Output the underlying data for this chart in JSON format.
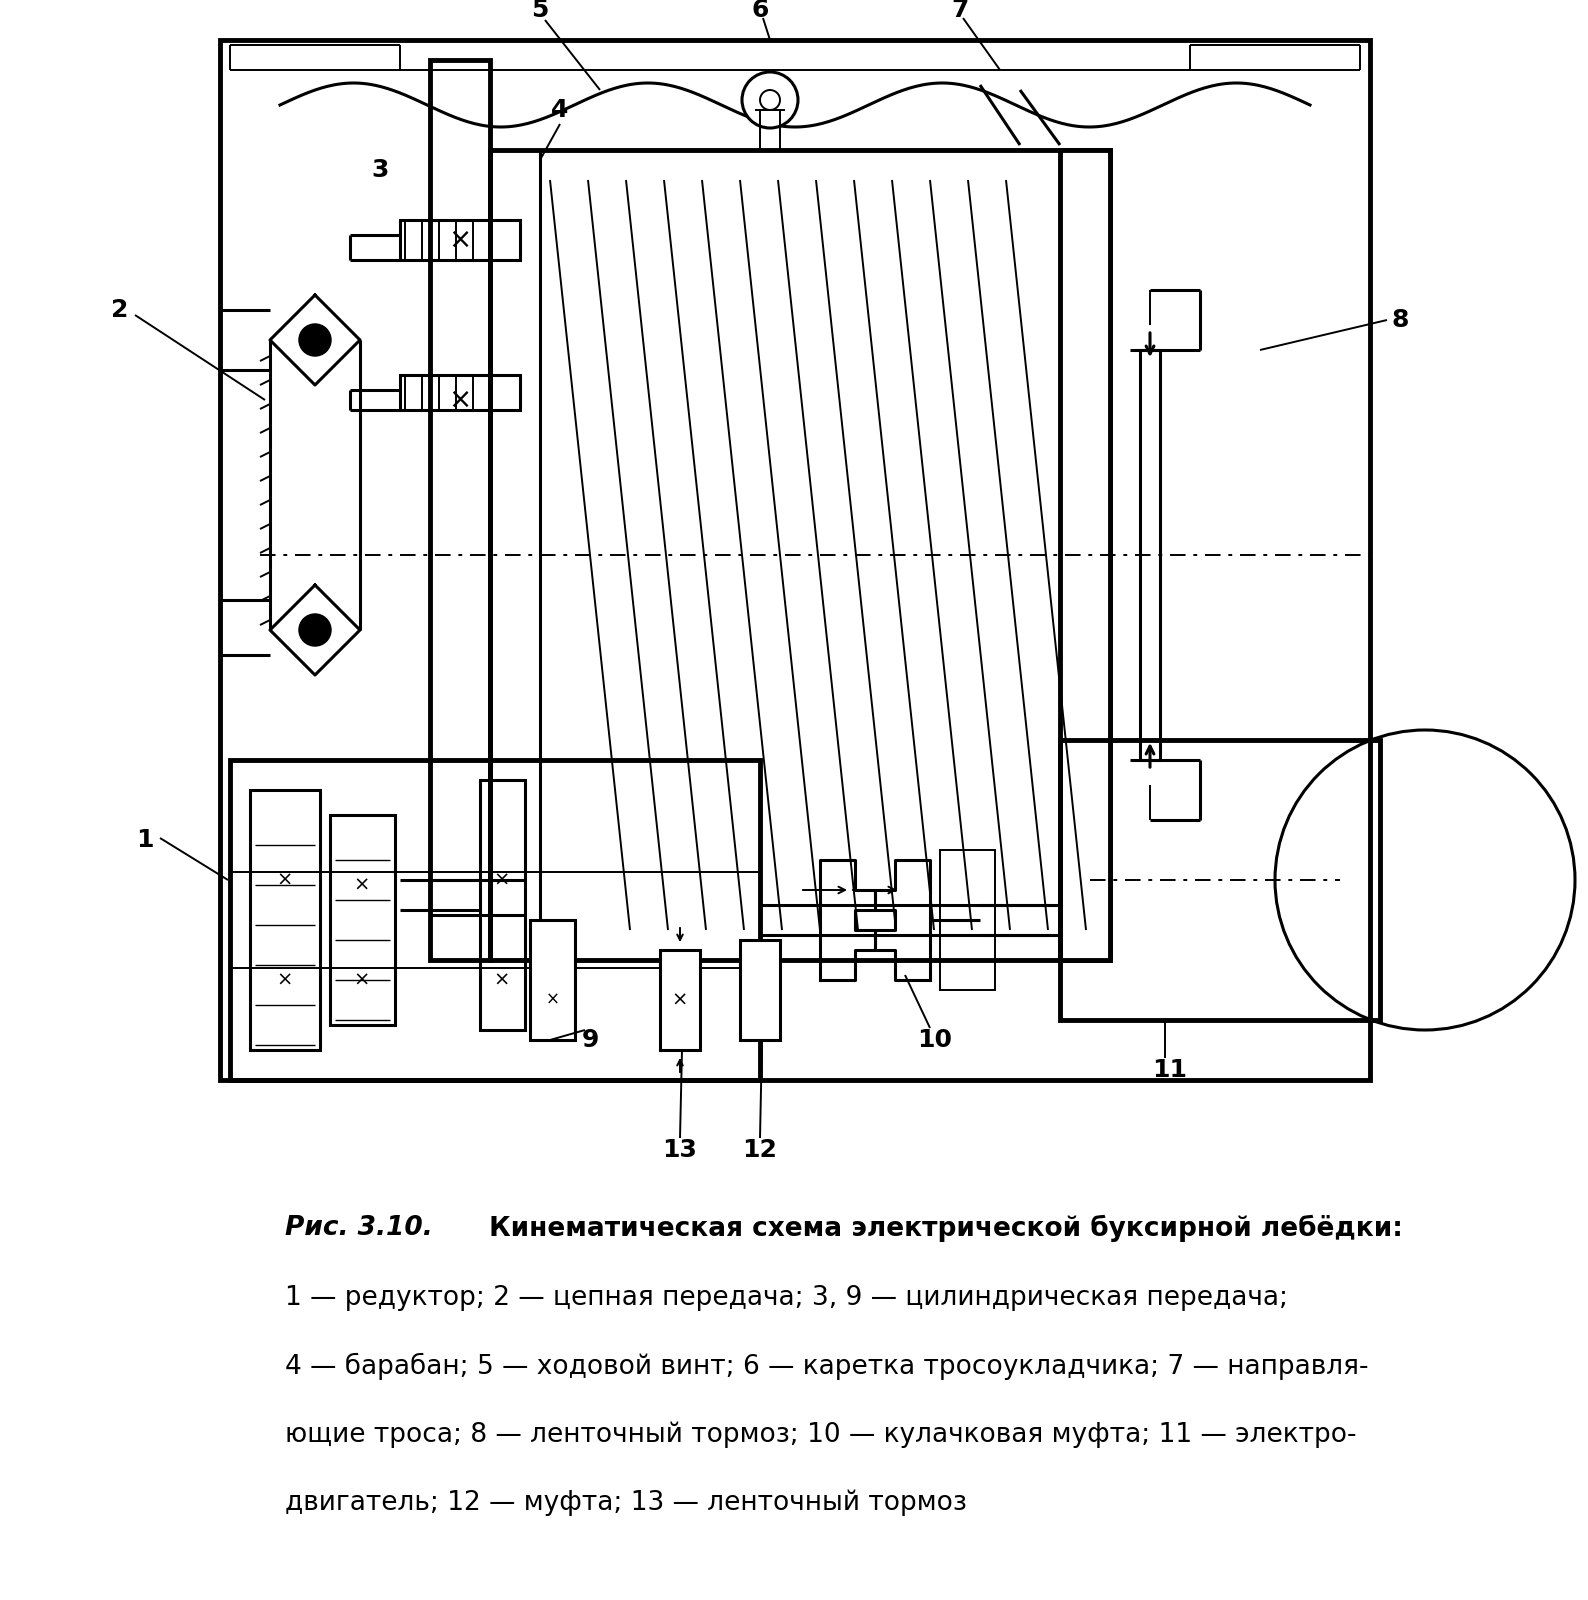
{
  "bg_color": "#ffffff",
  "line_color": "#000000",
  "fig_width": 15.88,
  "fig_height": 16.0,
  "caption_line1_italic": "Рис. 3.10.",
  "caption_line1_bold": " Кинематическая схема электрической буксирной лебёдки:",
  "caption_line2": "1 — редуктор; 2 — цепная передача; 3, 9 — цилиндрическая передача;",
  "caption_line3": "4 — барабан; 5 — ходовой винт; 6 — каретка тросоукладчика; 7 — направля-",
  "caption_line4": "ющие троса; 8 — ленточный тормоз; 10 — кулачковая муфта; 11 — электро-",
  "caption_line5": "двигатель; 12 — муфта; 13 — ленточный тормоз"
}
